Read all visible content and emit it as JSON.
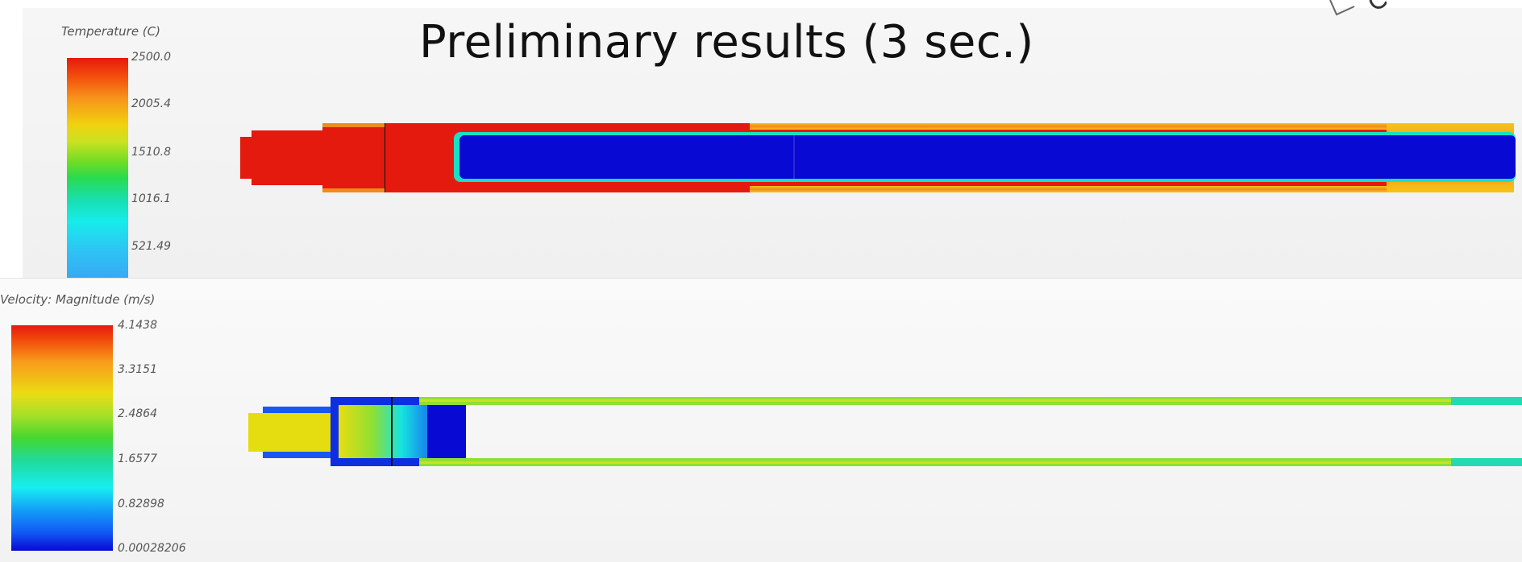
{
  "title": "Preliminary results (3 sec.)",
  "temperature_panel": {
    "legend_title": "Temperature (C)",
    "ticks": [
      "2500.0",
      "2005.4",
      "1510.8",
      "1016.1",
      "521.49"
    ],
    "colors": {
      "hot": "#e51a0e",
      "cold": "#0909d4",
      "edge": "#f08a1e"
    }
  },
  "velocity_panel": {
    "legend_title": "Velocity: Magnitude (m/s)",
    "ticks": [
      "4.1438",
      "3.3151",
      "2.4864",
      "1.6577",
      "0.82898",
      "0.00028206"
    ],
    "colors": {
      "core": "#e6dd11",
      "wall": "#8fe033",
      "low": "#0909d4"
    }
  }
}
